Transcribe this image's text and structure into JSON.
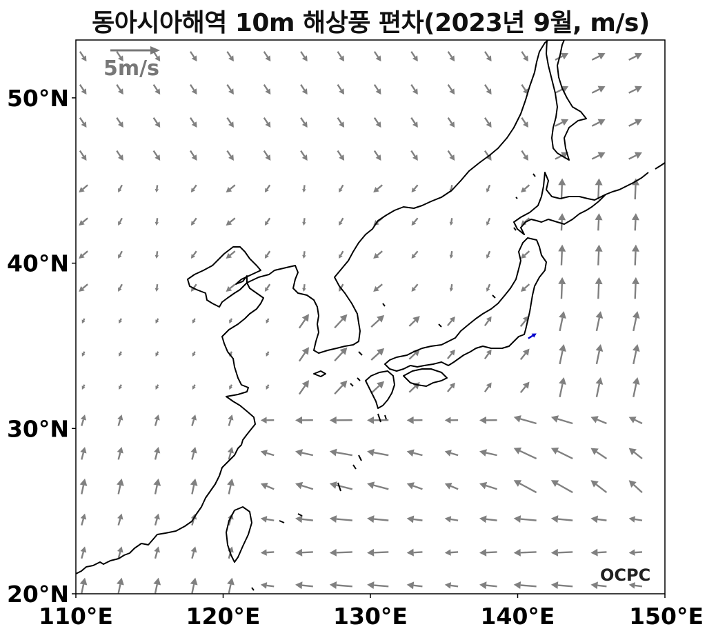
{
  "title": "동아시아해역 10m 해상풍 편차(2023년 9월, m/s)",
  "map": {
    "lon_range": [
      110,
      150
    ],
    "lat_range": [
      20,
      53.5
    ],
    "x_ticks": [
      110,
      120,
      130,
      140,
      150
    ],
    "x_tick_labels": [
      "110°E",
      "120°E",
      "130°E",
      "140°E",
      "150°E"
    ],
    "y_ticks": [
      20,
      30,
      40,
      50
    ],
    "y_tick_labels": [
      "20°N",
      "30°N",
      "40°N",
      "50°N"
    ],
    "coastline_color": "#000000",
    "arrow_color": "#808080",
    "highlight_arrow_color": "#0000cc"
  },
  "reference_arrow": {
    "label": "5m/s",
    "speed": 5
  },
  "logo": {
    "text": "OCPC"
  }
}
